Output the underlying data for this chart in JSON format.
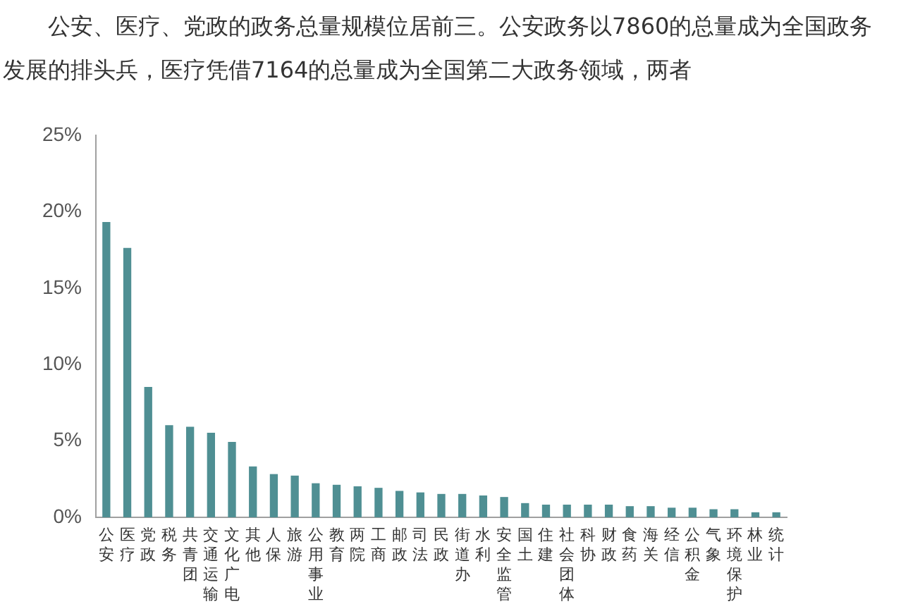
{
  "chart_data": {
    "type": "bar",
    "annotations": [
      "公安、医疗、党政的政务总量规模位居前三。公安政务以7860的总量成为全国政务发展的排头兵，医疗凭借7164的总量成为全国第二大政务领域，两者"
    ],
    "categories": [
      "公安",
      "医疗",
      "党政",
      "税务",
      "共青团",
      "交通运输",
      "文化广电",
      "其他",
      "人保",
      "旅游",
      "公用事业",
      "教育",
      "两院",
      "工商",
      "邮政",
      "司法",
      "民政",
      "街道办",
      "水利",
      "安全监管",
      "国土",
      "住建",
      "社会团体",
      "科协",
      "财政",
      "食药",
      "海关",
      "经信",
      "公积金",
      "气象",
      "环境保护",
      "林业",
      "统计"
    ],
    "values": [
      19.3,
      17.6,
      8.5,
      6.0,
      5.9,
      5.5,
      4.9,
      3.3,
      2.8,
      2.7,
      2.2,
      2.1,
      2.0,
      1.9,
      1.7,
      1.6,
      1.5,
      1.5,
      1.4,
      1.3,
      0.9,
      0.8,
      0.8,
      0.8,
      0.8,
      0.7,
      0.7,
      0.6,
      0.6,
      0.5,
      0.5,
      0.3,
      0.3
    ],
    "color": "#4f8f93",
    "ylim": [
      0,
      25
    ],
    "yticks": [
      {
        "value": 0,
        "label": "0%"
      },
      {
        "value": 5,
        "label": "5%"
      },
      {
        "value": 10,
        "label": "10%"
      },
      {
        "value": 15,
        "label": "15%"
      },
      {
        "value": 20,
        "label": "20%"
      },
      {
        "value": 25,
        "label": "25%"
      }
    ]
  }
}
